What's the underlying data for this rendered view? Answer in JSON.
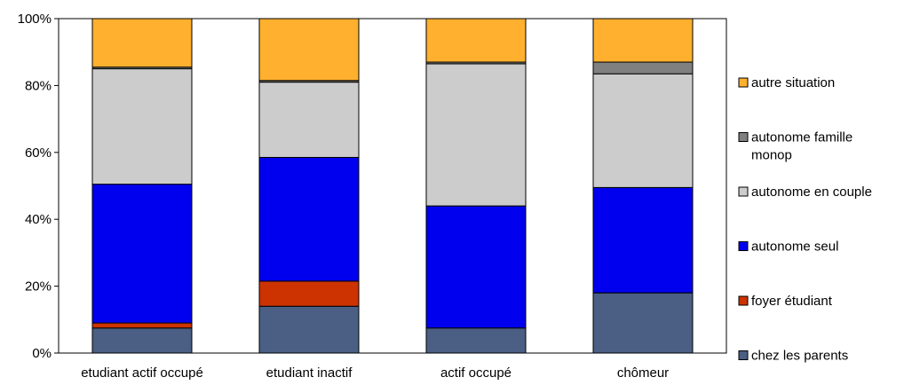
{
  "chart_data": {
    "type": "bar",
    "stacked": true,
    "normalized": true,
    "categories": [
      "etudiant actif  occupé",
      "etudiant inactif",
      "actif  occupé",
      "chômeur"
    ],
    "y_ticks": [
      "0%",
      "20%",
      "40%",
      "60%",
      "80%",
      "100%"
    ],
    "ylim": [
      0,
      100
    ],
    "legend_position": "right",
    "grid": false,
    "series": [
      {
        "name": "chez les parents",
        "color": "#4b5f84",
        "values": [
          7.5,
          14,
          7.5,
          18
        ]
      },
      {
        "name": "foyer étudiant",
        "color": "#cc3300",
        "values": [
          1.5,
          7.5,
          0,
          0
        ]
      },
      {
        "name": "autonome seul",
        "color": "#0000ee",
        "values": [
          41.5,
          37,
          36.5,
          31.5
        ]
      },
      {
        "name": "autonome en couple",
        "color": "#cccccc",
        "values": [
          34.5,
          22.5,
          42.5,
          34
        ]
      },
      {
        "name": "autonome famille monop",
        "color": "#808080",
        "values": [
          0.5,
          0.5,
          0.5,
          3.5
        ]
      },
      {
        "name": "autre situation",
        "color": "#ffb02e",
        "values": [
          14.5,
          18.5,
          13,
          13
        ]
      }
    ],
    "legend_order": [
      5,
      4,
      3,
      2,
      1,
      0
    ]
  }
}
